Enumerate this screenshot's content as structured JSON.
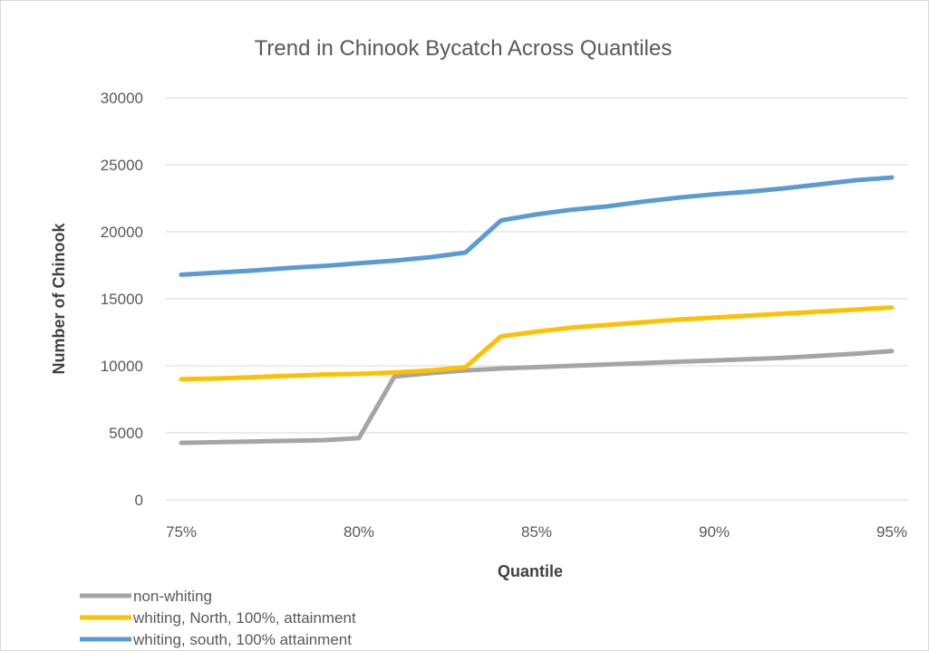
{
  "chart_data": {
    "type": "line",
    "title": "Trend in Chinook Bycatch Across Quantiles",
    "xlabel": "Quantile",
    "ylabel": "Number of Chinook",
    "x": [
      75,
      76,
      77,
      78,
      79,
      80,
      81,
      82,
      83,
      84,
      85,
      86,
      87,
      88,
      89,
      90,
      91,
      92,
      93,
      94,
      95
    ],
    "xlim": [
      75,
      95
    ],
    "xticks": [
      75,
      80,
      85,
      90,
      95
    ],
    "xtick_labels": [
      "75%",
      "80%",
      "85%",
      "90%",
      "95%"
    ],
    "ylim": [
      0,
      30000
    ],
    "yticks": [
      0,
      5000,
      10000,
      15000,
      20000,
      25000,
      30000
    ],
    "ytick_labels": [
      "0",
      "5000",
      "10000",
      "15000",
      "20000",
      "25000",
      "30000"
    ],
    "grid": "horizontal",
    "legend": "bottom-left",
    "series": [
      {
        "name": "non-whiting",
        "color": "#a5a5a5",
        "values": [
          4250,
          4300,
          4350,
          4400,
          4450,
          4600,
          9200,
          9450,
          9650,
          9800,
          9900,
          10000,
          10100,
          10200,
          10300,
          10400,
          10500,
          10600,
          10750,
          10900,
          11100
        ]
      },
      {
        "name": "whiting, North, 100%, attainment",
        "color": "#ffc000",
        "values": [
          9000,
          9050,
          9150,
          9250,
          9350,
          9400,
          9500,
          9650,
          9900,
          12200,
          12550,
          12850,
          13050,
          13250,
          13450,
          13600,
          13750,
          13900,
          14050,
          14200,
          14350
        ]
      },
      {
        "name": "whiting, south, 100% attainment",
        "color": "#5b9bd5",
        "values": [
          16800,
          16950,
          17100,
          17300,
          17450,
          17650,
          17850,
          18100,
          18450,
          20850,
          21300,
          21650,
          21900,
          22250,
          22550,
          22800,
          23000,
          23250,
          23550,
          23850,
          24050
        ]
      }
    ]
  }
}
